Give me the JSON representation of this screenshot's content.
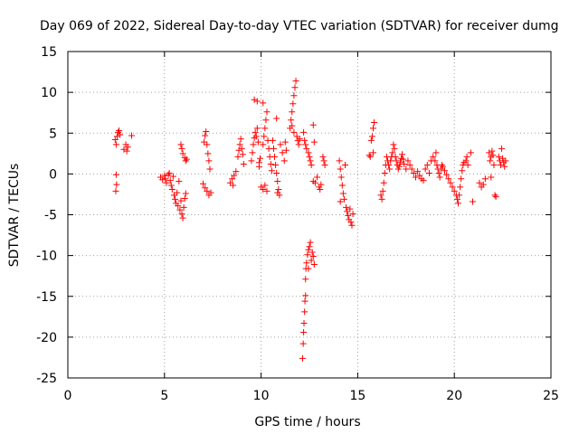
{
  "chart_data": {
    "type": "scatter",
    "title": "Day 069 of 2022, Sidereal Day-to-day VTEC variation (SDTVAR) for receiver dumg",
    "xlabel": "GPS time / hours",
    "ylabel": "SDTVAR / TECUs",
    "xlim": [
      0,
      25
    ],
    "ylim": [
      -25,
      15
    ],
    "x_ticks": [
      0,
      5,
      10,
      15,
      20,
      25
    ],
    "x_tick_labels": [
      "0",
      "5",
      "10",
      "15",
      "20",
      "25"
    ],
    "y_ticks": [
      -25,
      -20,
      -15,
      -10,
      -5,
      0,
      5,
      10,
      15
    ],
    "y_tick_labels": [
      "-25",
      "-20",
      "-15",
      "-10",
      "-5",
      "0",
      "5",
      "10",
      "15"
    ],
    "grid": true,
    "marker": "+",
    "color": "#ff0000",
    "series": [
      {
        "name": "SDTVAR",
        "points": [
          [
            2.45,
            4.2
          ],
          [
            2.5,
            3.6
          ],
          [
            2.55,
            4.6
          ],
          [
            2.6,
            5.1
          ],
          [
            2.65,
            5.3
          ],
          [
            2.7,
            4.8
          ],
          [
            2.5,
            -0.1
          ],
          [
            2.52,
            -1.3
          ],
          [
            2.48,
            -2.1
          ],
          [
            2.9,
            3.0
          ],
          [
            3.0,
            3.6
          ],
          [
            3.05,
            2.8
          ],
          [
            3.1,
            3.3
          ],
          [
            3.3,
            4.7
          ],
          [
            4.8,
            -0.4
          ],
          [
            4.9,
            -0.7
          ],
          [
            5.0,
            -0.2
          ],
          [
            5.05,
            -0.6
          ],
          [
            5.1,
            -1.1
          ],
          [
            5.2,
            -0.1
          ],
          [
            5.25,
            0.1
          ],
          [
            5.3,
            -0.8
          ],
          [
            5.35,
            -1.4
          ],
          [
            5.4,
            -1.9
          ],
          [
            5.45,
            -0.3
          ],
          [
            5.5,
            -2.6
          ],
          [
            5.55,
            -3.1
          ],
          [
            5.6,
            -3.6
          ],
          [
            5.65,
            -2.3
          ],
          [
            5.7,
            -3.9
          ],
          [
            5.8,
            -4.4
          ],
          [
            5.85,
            -3.3
          ],
          [
            5.9,
            -4.9
          ],
          [
            5.95,
            -5.4
          ],
          [
            6.0,
            -4.1
          ],
          [
            6.05,
            -3.0
          ],
          [
            6.1,
            -2.4
          ],
          [
            5.75,
            -0.9
          ],
          [
            5.85,
            3.6
          ],
          [
            5.9,
            3.1
          ],
          [
            5.95,
            2.5
          ],
          [
            6.05,
            2.0
          ],
          [
            6.1,
            1.6
          ],
          [
            6.15,
            1.8
          ],
          [
            7.05,
            3.9
          ],
          [
            7.1,
            4.7
          ],
          [
            7.15,
            5.2
          ],
          [
            7.2,
            3.6
          ],
          [
            7.25,
            2.5
          ],
          [
            7.3,
            1.6
          ],
          [
            7.35,
            0.6
          ],
          [
            7.0,
            -1.2
          ],
          [
            7.1,
            -1.7
          ],
          [
            7.2,
            -2.1
          ],
          [
            7.3,
            -2.6
          ],
          [
            7.4,
            -2.3
          ],
          [
            8.4,
            -1.1
          ],
          [
            8.5,
            -0.6
          ],
          [
            8.6,
            -0.2
          ],
          [
            8.7,
            0.3
          ],
          [
            8.55,
            -1.4
          ],
          [
            8.8,
            2.1
          ],
          [
            8.85,
            2.9
          ],
          [
            8.9,
            3.6
          ],
          [
            8.95,
            4.3
          ],
          [
            9.0,
            3.1
          ],
          [
            9.05,
            2.4
          ],
          [
            9.1,
            1.2
          ],
          [
            9.5,
            1.6
          ],
          [
            9.55,
            2.6
          ],
          [
            9.6,
            3.6
          ],
          [
            9.65,
            4.4
          ],
          [
            9.7,
            5.1
          ],
          [
            9.75,
            4.6
          ],
          [
            9.8,
            5.6
          ],
          [
            9.85,
            3.9
          ],
          [
            9.9,
            1.4
          ],
          [
            9.9,
            0.9
          ],
          [
            9.95,
            1.9
          ],
          [
            9.8,
            8.9
          ],
          [
            9.65,
            9.1
          ],
          [
            10.1,
            3.6
          ],
          [
            10.15,
            4.6
          ],
          [
            10.2,
            5.6
          ],
          [
            10.25,
            6.6
          ],
          [
            10.3,
            7.6
          ],
          [
            10.35,
            4.1
          ],
          [
            10.4,
            3.1
          ],
          [
            10.45,
            2.1
          ],
          [
            10.5,
            1.2
          ],
          [
            10.55,
            0.4
          ],
          [
            10.0,
            -1.6
          ],
          [
            10.1,
            -1.9
          ],
          [
            10.2,
            -1.4
          ],
          [
            10.3,
            -2.1
          ],
          [
            10.1,
            8.7
          ],
          [
            10.6,
            4.1
          ],
          [
            10.65,
            3.1
          ],
          [
            10.7,
            2.1
          ],
          [
            10.75,
            1.1
          ],
          [
            10.8,
            0.1
          ],
          [
            10.85,
            -0.9
          ],
          [
            10.9,
            -1.9
          ],
          [
            10.95,
            -2.6
          ],
          [
            11.0,
            3.6
          ],
          [
            11.1,
            2.6
          ],
          [
            11.2,
            1.6
          ],
          [
            11.25,
            3.9
          ],
          [
            11.3,
            2.9
          ],
          [
            10.8,
            6.8
          ],
          [
            10.85,
            -2.3
          ],
          [
            11.5,
            5.6
          ],
          [
            11.55,
            6.6
          ],
          [
            11.6,
            7.6
          ],
          [
            11.65,
            8.6
          ],
          [
            11.7,
            9.6
          ],
          [
            11.75,
            10.6
          ],
          [
            11.8,
            11.4
          ],
          [
            11.7,
            5.1
          ],
          [
            11.85,
            4.6
          ],
          [
            11.9,
            4.1
          ],
          [
            11.95,
            3.6
          ],
          [
            12.0,
            4.3
          ],
          [
            11.6,
            5.9
          ],
          [
            12.2,
            5.1
          ],
          [
            12.25,
            4.1
          ],
          [
            12.3,
            3.6
          ],
          [
            12.35,
            3.1
          ],
          [
            12.45,
            2.6
          ],
          [
            12.5,
            2.1
          ],
          [
            12.55,
            1.6
          ],
          [
            12.6,
            1.1
          ],
          [
            12.7,
            6.0
          ],
          [
            12.75,
            3.9
          ],
          [
            12.15,
            -22.6
          ],
          [
            12.18,
            -20.8
          ],
          [
            12.2,
            -19.4
          ],
          [
            12.22,
            -18.3
          ],
          [
            12.25,
            -16.9
          ],
          [
            12.27,
            -15.6
          ],
          [
            12.3,
            -14.9
          ],
          [
            12.3,
            -12.9
          ],
          [
            12.32,
            -11.6
          ],
          [
            12.35,
            -10.9
          ],
          [
            12.4,
            -9.9
          ],
          [
            12.45,
            -9.3
          ],
          [
            12.5,
            -8.9
          ],
          [
            12.55,
            -8.4
          ],
          [
            12.6,
            -10.6
          ],
          [
            12.65,
            -9.6
          ],
          [
            12.7,
            -10.1
          ],
          [
            12.75,
            -11.1
          ],
          [
            12.45,
            -11.6
          ],
          [
            12.7,
            -0.9
          ],
          [
            12.8,
            -1.1
          ],
          [
            12.9,
            -0.4
          ],
          [
            13.0,
            -1.6
          ],
          [
            13.05,
            -1.9
          ],
          [
            13.1,
            -1.3
          ],
          [
            13.2,
            2.1
          ],
          [
            13.25,
            1.6
          ],
          [
            13.3,
            1.1
          ],
          [
            14.05,
            1.6
          ],
          [
            14.1,
            0.6
          ],
          [
            14.15,
            -0.4
          ],
          [
            14.2,
            -1.4
          ],
          [
            14.25,
            -2.4
          ],
          [
            14.3,
            -3.1
          ],
          [
            14.35,
            1.1
          ],
          [
            14.1,
            -3.4
          ],
          [
            14.4,
            -4.1
          ],
          [
            14.45,
            -4.6
          ],
          [
            14.5,
            -5.1
          ],
          [
            14.55,
            -5.6
          ],
          [
            14.6,
            -4.3
          ],
          [
            14.65,
            -5.9
          ],
          [
            14.7,
            -6.3
          ],
          [
            14.75,
            -4.9
          ],
          [
            15.6,
            2.3
          ],
          [
            15.65,
            2.1
          ],
          [
            15.7,
            4.1
          ],
          [
            15.75,
            4.6
          ],
          [
            15.8,
            5.6
          ],
          [
            15.85,
            6.3
          ],
          [
            15.8,
            2.6
          ],
          [
            16.2,
            -2.6
          ],
          [
            16.25,
            -3.1
          ],
          [
            16.3,
            -2.1
          ],
          [
            16.35,
            -1.1
          ],
          [
            16.4,
            0.1
          ],
          [
            16.45,
            1.1
          ],
          [
            16.5,
            2.1
          ],
          [
            16.55,
            1.6
          ],
          [
            16.6,
            1.1
          ],
          [
            16.65,
            0.6
          ],
          [
            16.7,
            1.6
          ],
          [
            16.75,
            2.1
          ],
          [
            16.8,
            2.6
          ],
          [
            16.85,
            3.6
          ],
          [
            16.9,
            3.1
          ],
          [
            16.95,
            2.1
          ],
          [
            17.0,
            1.6
          ],
          [
            17.05,
            1.1
          ],
          [
            17.1,
            0.6
          ],
          [
            17.15,
            0.9
          ],
          [
            17.2,
            1.4
          ],
          [
            17.25,
            1.9
          ],
          [
            17.3,
            2.4
          ],
          [
            17.35,
            1.8
          ],
          [
            17.4,
            1.2
          ],
          [
            17.5,
            0.6
          ],
          [
            17.6,
            1.6
          ],
          [
            17.7,
            1.1
          ],
          [
            17.8,
            0.6
          ],
          [
            17.9,
            0.1
          ],
          [
            18.0,
            -0.4
          ],
          [
            18.1,
            0.3
          ],
          [
            18.2,
            -0.2
          ],
          [
            18.3,
            -0.6
          ],
          [
            18.4,
            -0.8
          ],
          [
            18.5,
            0.6
          ],
          [
            18.6,
            1.1
          ],
          [
            18.7,
            0.1
          ],
          [
            18.8,
            1.6
          ],
          [
            18.9,
            2.1
          ],
          [
            19.0,
            1.6
          ],
          [
            19.05,
            2.6
          ],
          [
            19.1,
            1.1
          ],
          [
            19.15,
            0.6
          ],
          [
            19.2,
            0.1
          ],
          [
            19.25,
            -0.4
          ],
          [
            19.3,
            0.6
          ],
          [
            19.35,
            1.1
          ],
          [
            19.4,
            0.9
          ],
          [
            19.5,
            0.4
          ],
          [
            19.6,
            -0.1
          ],
          [
            19.7,
            -0.6
          ],
          [
            19.8,
            -1.1
          ],
          [
            19.9,
            -1.6
          ],
          [
            20.0,
            -2.1
          ],
          [
            20.1,
            -2.6
          ],
          [
            20.15,
            -3.1
          ],
          [
            20.2,
            -3.6
          ],
          [
            20.25,
            -2.6
          ],
          [
            20.3,
            -1.6
          ],
          [
            20.35,
            -0.6
          ],
          [
            20.4,
            0.4
          ],
          [
            20.45,
            1.1
          ],
          [
            20.5,
            1.4
          ],
          [
            20.6,
            1.6
          ],
          [
            20.65,
            2.1
          ],
          [
            20.7,
            1.1
          ],
          [
            20.85,
            2.6
          ],
          [
            20.95,
            -3.4
          ],
          [
            21.3,
            -1.1
          ],
          [
            21.4,
            -1.6
          ],
          [
            21.5,
            -1.3
          ],
          [
            21.6,
            -0.6
          ],
          [
            21.8,
            2.6
          ],
          [
            21.85,
            1.6
          ],
          [
            21.9,
            2.1
          ],
          [
            21.95,
            2.8
          ],
          [
            22.0,
            2.3
          ],
          [
            22.05,
            1.1
          ],
          [
            21.9,
            -0.4
          ],
          [
            22.1,
            -2.6
          ],
          [
            22.15,
            -2.8
          ],
          [
            22.3,
            2.1
          ],
          [
            22.35,
            1.6
          ],
          [
            22.4,
            1.1
          ],
          [
            22.45,
            3.1
          ],
          [
            22.5,
            1.9
          ],
          [
            22.55,
            1.4
          ],
          [
            22.6,
            0.9
          ],
          [
            22.65,
            1.6
          ]
        ]
      }
    ]
  }
}
